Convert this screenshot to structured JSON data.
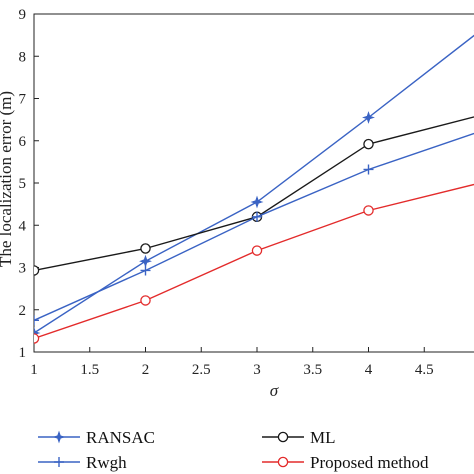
{
  "chart_data": {
    "type": "line",
    "x": [
      1,
      2,
      3,
      4,
      5
    ],
    "xlabel": "σ",
    "ylabel": "The localization error (m)",
    "xlim": [
      1,
      5
    ],
    "ylim": [
      1,
      9
    ],
    "xticks": [
      "1",
      "1.5",
      "2",
      "2.5",
      "3",
      "3.5",
      "4",
      "4.5"
    ],
    "yticks": [
      "1",
      "2",
      "3",
      "4",
      "5",
      "6",
      "7",
      "8",
      "9"
    ],
    "grid": false,
    "legend_position": "bottom",
    "series": [
      {
        "name": "RANSAC",
        "values": [
          1.45,
          3.15,
          4.55,
          6.55,
          8.6
        ],
        "color": "#3a63c4",
        "marker": "star"
      },
      {
        "name": "ML",
        "values": [
          2.93,
          3.45,
          4.2,
          5.92,
          6.6
        ],
        "color": "#1a1a1a",
        "marker": "circle"
      },
      {
        "name": "Rwgh",
        "values": [
          1.75,
          2.93,
          4.2,
          5.32,
          6.22
        ],
        "color": "#3a63c4",
        "marker": "plus"
      },
      {
        "name": "Proposed method",
        "values": [
          1.32,
          2.22,
          3.4,
          4.35,
          5.0
        ],
        "color": "#e32b2b",
        "marker": "circle"
      }
    ]
  }
}
